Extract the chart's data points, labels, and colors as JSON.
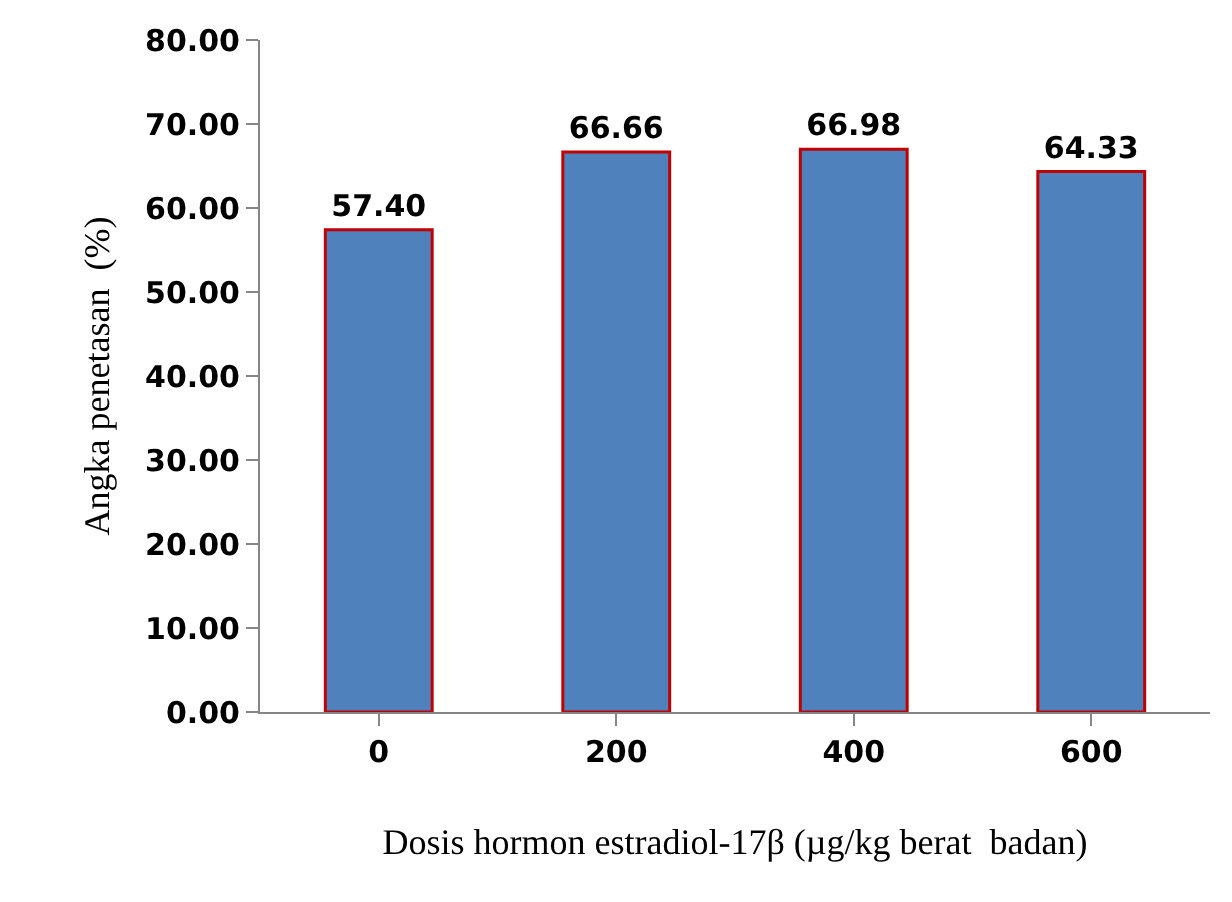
{
  "chart_data": {
    "type": "bar",
    "xlabel": "Dosis hormon estradiol-17β (µg/kg berat  badan)",
    "ylabel": "Angka penetasan  (%)",
    "categories": [
      "0",
      "200",
      "400",
      "600"
    ],
    "values": [
      57.4,
      66.66,
      66.98,
      64.33
    ],
    "value_labels": [
      "57.40",
      "66.66",
      "66.98",
      "64.33"
    ],
    "color": "#4f81bd",
    "ylim": [
      0,
      80
    ],
    "yticks": [
      {
        "value": 0,
        "label": "0.00"
      },
      {
        "value": 10,
        "label": "10.00"
      },
      {
        "value": 20,
        "label": "20.00"
      },
      {
        "value": 30,
        "label": "30.00"
      },
      {
        "value": 40,
        "label": "40.00"
      },
      {
        "value": 50,
        "label": "50.00"
      },
      {
        "value": 60,
        "label": "60.00"
      },
      {
        "value": 70,
        "label": "70.00"
      },
      {
        "value": 80,
        "label": "80.00"
      }
    ],
    "legend": false
  }
}
